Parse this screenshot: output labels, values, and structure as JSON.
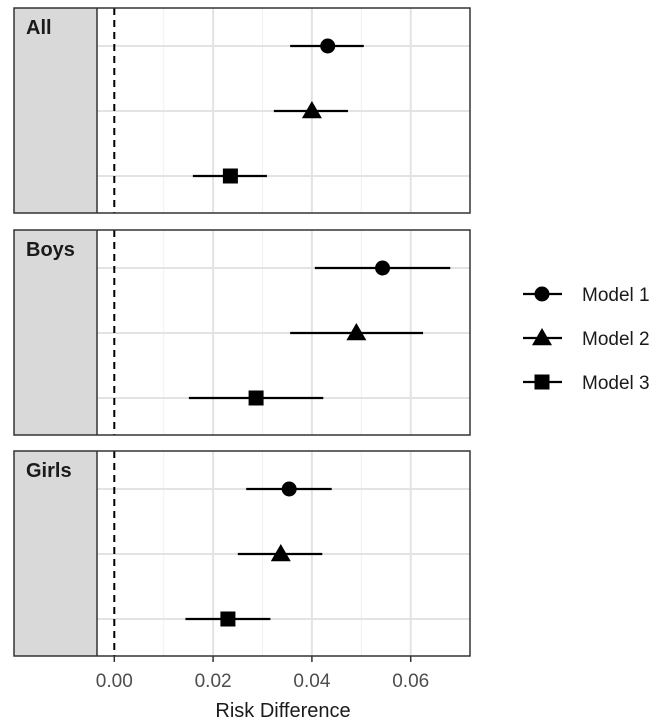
{
  "chart_data": {
    "type": "forest-plot",
    "xlabel": "Risk Difference",
    "xlim": [
      -0.0035,
      0.072
    ],
    "x_ticks": [
      0.0,
      0.02,
      0.04,
      0.06
    ],
    "x_tick_labels": [
      "0.00",
      "0.02",
      "0.04",
      "0.06"
    ],
    "reference_line": {
      "x": 0.0,
      "style": "dashed"
    },
    "grid": true,
    "legend_position": "right",
    "series": [
      {
        "name": "Model 1",
        "marker": "circle"
      },
      {
        "name": "Model 2",
        "marker": "triangle"
      },
      {
        "name": "Model 3",
        "marker": "square"
      }
    ],
    "panels": [
      {
        "label": "All",
        "estimates": [
          {
            "series": "Model 1",
            "estimate": 0.0432,
            "lower": 0.0356,
            "upper": 0.0505
          },
          {
            "series": "Model 2",
            "estimate": 0.04,
            "lower": 0.0323,
            "upper": 0.0473
          },
          {
            "series": "Model 3",
            "estimate": 0.0235,
            "lower": 0.0159,
            "upper": 0.0309
          }
        ]
      },
      {
        "label": "Boys",
        "estimates": [
          {
            "series": "Model 1",
            "estimate": 0.0543,
            "lower": 0.0406,
            "upper": 0.068
          },
          {
            "series": "Model 2",
            "estimate": 0.049,
            "lower": 0.0356,
            "upper": 0.0625
          },
          {
            "series": "Model 3",
            "estimate": 0.0287,
            "lower": 0.0151,
            "upper": 0.0423
          }
        ]
      },
      {
        "label": "Girls",
        "estimates": [
          {
            "series": "Model 1",
            "estimate": 0.0354,
            "lower": 0.0267,
            "upper": 0.044
          },
          {
            "series": "Model 2",
            "estimate": 0.0337,
            "lower": 0.025,
            "upper": 0.0421
          },
          {
            "series": "Model 3",
            "estimate": 0.023,
            "lower": 0.0144,
            "upper": 0.0316
          }
        ]
      }
    ]
  }
}
